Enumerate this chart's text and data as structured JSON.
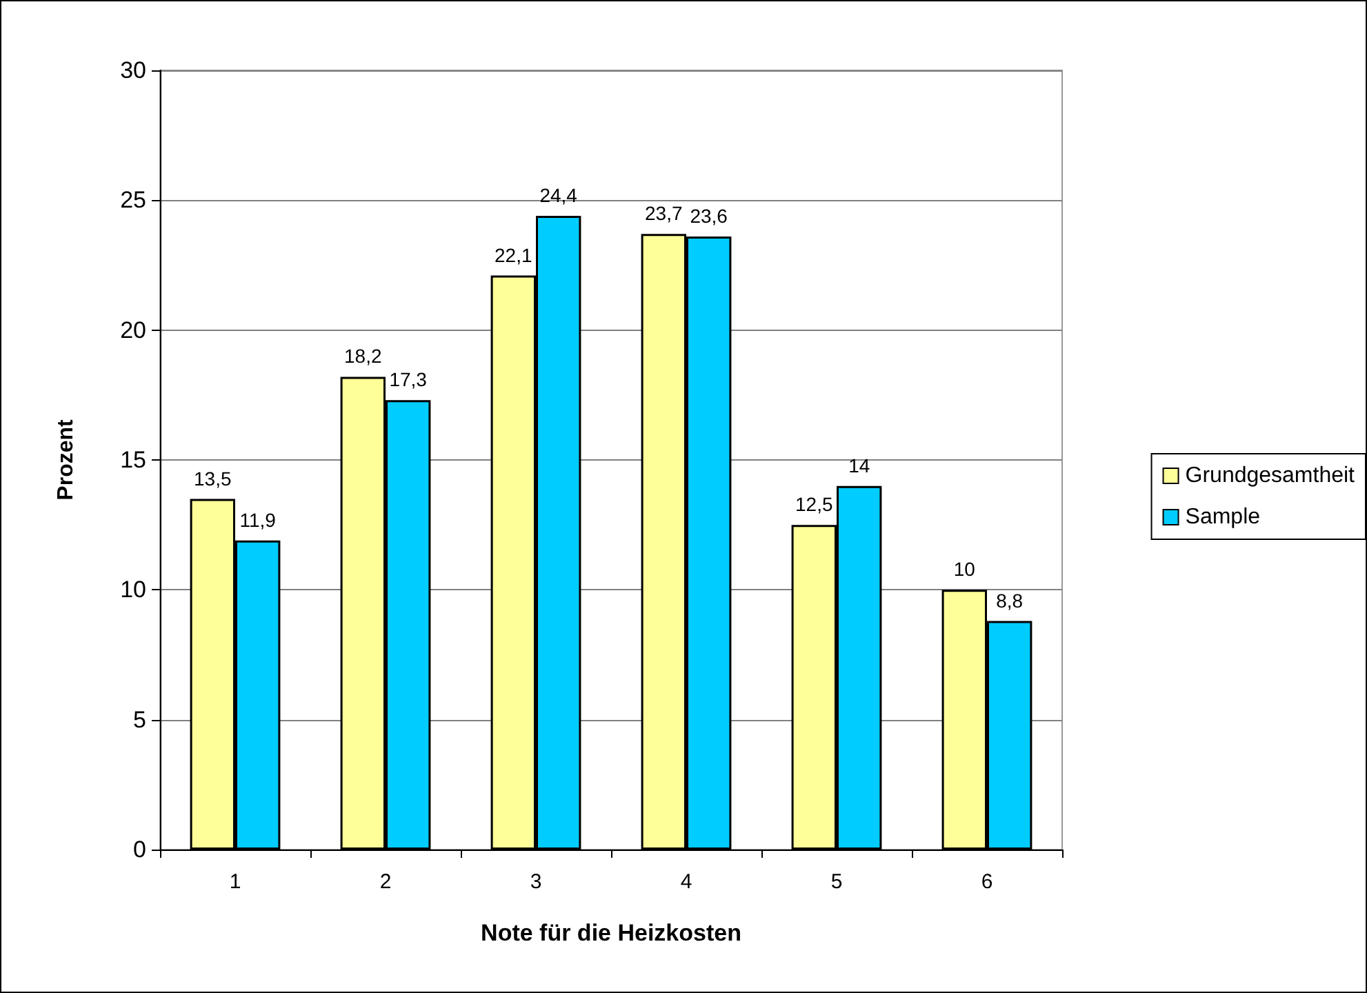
{
  "chart_data": {
    "type": "bar",
    "xlabel": "Note für die Heizkosten",
    "ylabel": "Prozent",
    "categories": [
      "1",
      "2",
      "3",
      "4",
      "5",
      "6"
    ],
    "series": [
      {
        "name": "Grundgesamtheit",
        "color": "#ffff99",
        "values": [
          13.5,
          18.2,
          22.1,
          23.7,
          12.5,
          10
        ],
        "value_labels": [
          "13,5",
          "18,2",
          "22,1",
          "23,7",
          "12,5",
          "10"
        ]
      },
      {
        "name": "Sample",
        "color": "#00ccff",
        "values": [
          11.9,
          17.3,
          24.4,
          23.6,
          14,
          8.8
        ],
        "value_labels": [
          "11,9",
          "17,3",
          "24,4",
          "23,6",
          "14",
          "8,8"
        ]
      }
    ],
    "ylim": [
      0,
      30
    ],
    "yticks": [
      0,
      5,
      10,
      15,
      20,
      25,
      30
    ],
    "grid": "y",
    "legend": "right"
  }
}
